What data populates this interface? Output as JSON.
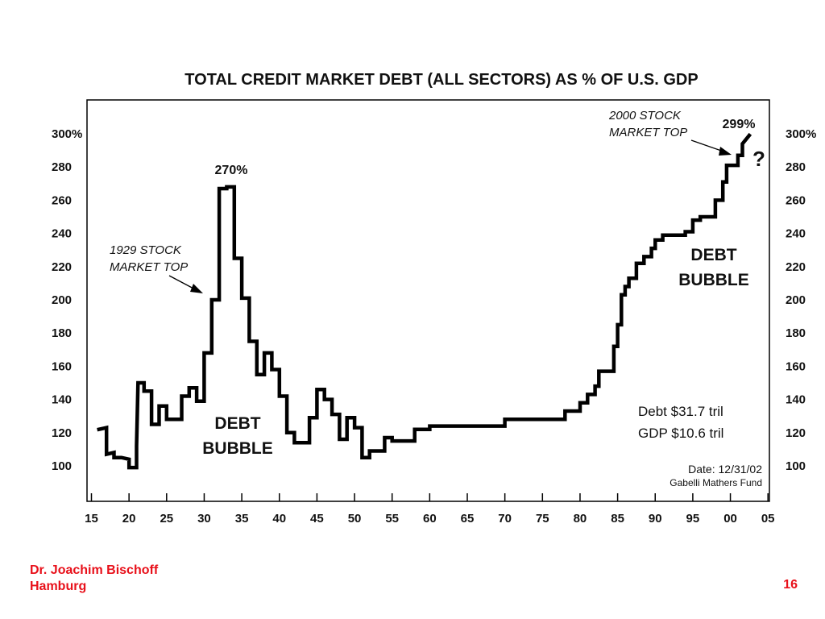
{
  "slide": {
    "author": "Dr. Joachim Bischoff",
    "city": "Hamburg",
    "page_number": "16"
  },
  "chart_data": {
    "type": "line",
    "step": true,
    "title": "TOTAL CREDIT MARKET DEBT (ALL SECTORS) AS % OF U.S. GDP",
    "xlabel": "",
    "ylabel": "",
    "xlim": [
      1915,
      2005
    ],
    "ylim": [
      90,
      320
    ],
    "grid": false,
    "x_ticks": [
      1915,
      1920,
      1925,
      1930,
      1935,
      1940,
      1945,
      1950,
      1955,
      1960,
      1965,
      1970,
      1975,
      1980,
      1985,
      1990,
      1995,
      2000,
      2005
    ],
    "x_tick_labels": [
      "15",
      "20",
      "25",
      "30",
      "35",
      "40",
      "45",
      "50",
      "55",
      "60",
      "65",
      "70",
      "75",
      "80",
      "85",
      "90",
      "95",
      "00",
      "05"
    ],
    "y_ticks": [
      100,
      120,
      140,
      160,
      180,
      200,
      220,
      240,
      260,
      280,
      300
    ],
    "y_tick_labels": [
      "100",
      "120",
      "140",
      "160",
      "180",
      "200",
      "220",
      "240",
      "260",
      "280",
      "300%"
    ],
    "series": [
      {
        "color": "#000000",
        "points": [
          [
            1916,
            122
          ],
          [
            1917,
            123
          ],
          [
            1917,
            107
          ],
          [
            1918,
            108
          ],
          [
            1918,
            105
          ],
          [
            1919,
            105
          ],
          [
            1920,
            104
          ],
          [
            1920,
            99
          ],
          [
            1921,
            99
          ],
          [
            1921,
            112
          ],
          [
            1921.2,
            150
          ],
          [
            1922,
            150
          ],
          [
            1922,
            145
          ],
          [
            1923,
            145
          ],
          [
            1923,
            125
          ],
          [
            1924,
            125
          ],
          [
            1924,
            136
          ],
          [
            1925,
            136
          ],
          [
            1925,
            128
          ],
          [
            1927,
            128
          ],
          [
            1927,
            142
          ],
          [
            1928,
            142
          ],
          [
            1928,
            147
          ],
          [
            1929,
            147
          ],
          [
            1929,
            139
          ],
          [
            1930,
            139
          ],
          [
            1930,
            168
          ],
          [
            1931,
            168
          ],
          [
            1931,
            200
          ],
          [
            1932,
            200
          ],
          [
            1932,
            267
          ],
          [
            1933,
            267
          ],
          [
            1933,
            268
          ],
          [
            1934,
            268
          ],
          [
            1934,
            225
          ],
          [
            1935,
            225
          ],
          [
            1935,
            201
          ],
          [
            1936,
            201
          ],
          [
            1936,
            175
          ],
          [
            1937,
            175
          ],
          [
            1937,
            155
          ],
          [
            1938,
            155
          ],
          [
            1938,
            168
          ],
          [
            1939,
            168
          ],
          [
            1939,
            158
          ],
          [
            1940,
            158
          ],
          [
            1940,
            142
          ],
          [
            1941,
            142
          ],
          [
            1941,
            120
          ],
          [
            1942,
            120
          ],
          [
            1942,
            114
          ],
          [
            1944,
            114
          ],
          [
            1944,
            129
          ],
          [
            1945,
            129
          ],
          [
            1945,
            146
          ],
          [
            1946,
            146
          ],
          [
            1946,
            140
          ],
          [
            1947,
            140
          ],
          [
            1947,
            131
          ],
          [
            1948,
            131
          ],
          [
            1948,
            116
          ],
          [
            1949,
            116
          ],
          [
            1949,
            129
          ],
          [
            1950,
            129
          ],
          [
            1950,
            123
          ],
          [
            1951,
            123
          ],
          [
            1951,
            105
          ],
          [
            1952,
            105
          ],
          [
            1952,
            109
          ],
          [
            1954,
            109
          ],
          [
            1954,
            117
          ],
          [
            1955,
            117
          ],
          [
            1955,
            115
          ],
          [
            1958,
            115
          ],
          [
            1958,
            122
          ],
          [
            1960,
            122
          ],
          [
            1960,
            124
          ],
          [
            1970,
            124
          ],
          [
            1970,
            128
          ],
          [
            1978,
            128
          ],
          [
            1978,
            133
          ],
          [
            1980,
            133
          ],
          [
            1980,
            138
          ],
          [
            1981,
            138
          ],
          [
            1981,
            143
          ],
          [
            1982,
            143
          ],
          [
            1982,
            148
          ],
          [
            1982.5,
            148
          ],
          [
            1982.5,
            157
          ],
          [
            1984.5,
            157
          ],
          [
            1984.5,
            172
          ],
          [
            1985,
            172
          ],
          [
            1985,
            185
          ],
          [
            1985.5,
            185
          ],
          [
            1985.5,
            203
          ],
          [
            1986,
            203
          ],
          [
            1986,
            208
          ],
          [
            1986.5,
            208
          ],
          [
            1986.5,
            213
          ],
          [
            1987.5,
            213
          ],
          [
            1987.5,
            222
          ],
          [
            1988.5,
            222
          ],
          [
            1988.5,
            226
          ],
          [
            1989.5,
            226
          ],
          [
            1989.5,
            231
          ],
          [
            1990,
            231
          ],
          [
            1990,
            236
          ],
          [
            1991,
            236
          ],
          [
            1991,
            239
          ],
          [
            1994,
            239
          ],
          [
            1994,
            241
          ],
          [
            1995,
            241
          ],
          [
            1995,
            248
          ],
          [
            1996,
            248
          ],
          [
            1996,
            250
          ],
          [
            1998,
            250
          ],
          [
            1998,
            260
          ],
          [
            1999,
            260
          ],
          [
            1999,
            271
          ],
          [
            1999.5,
            271
          ],
          [
            1999.5,
            281
          ],
          [
            2001,
            281
          ],
          [
            2001,
            287
          ],
          [
            2001.6,
            287
          ],
          [
            2001.6,
            294
          ],
          [
            2002.5,
            299
          ]
        ]
      }
    ],
    "annotations": {
      "peak_1929": "270%",
      "label_1929_line1": "1929 STOCK",
      "label_1929_line2": "MARKET TOP",
      "bubble_left_line1": "DEBT",
      "bubble_left_line2": "BUBBLE",
      "peak_2002": "299%",
      "label_2000_line1": "2000 STOCK",
      "label_2000_line2": "MARKET TOP",
      "question": "?",
      "bubble_right_line1": "DEBT",
      "bubble_right_line2": "BUBBLE",
      "debt": "Debt $31.7 tril",
      "gdp": "GDP $10.6 tril",
      "date": "Date: 12/31/02",
      "source": "Gabelli Mathers Fund"
    }
  }
}
